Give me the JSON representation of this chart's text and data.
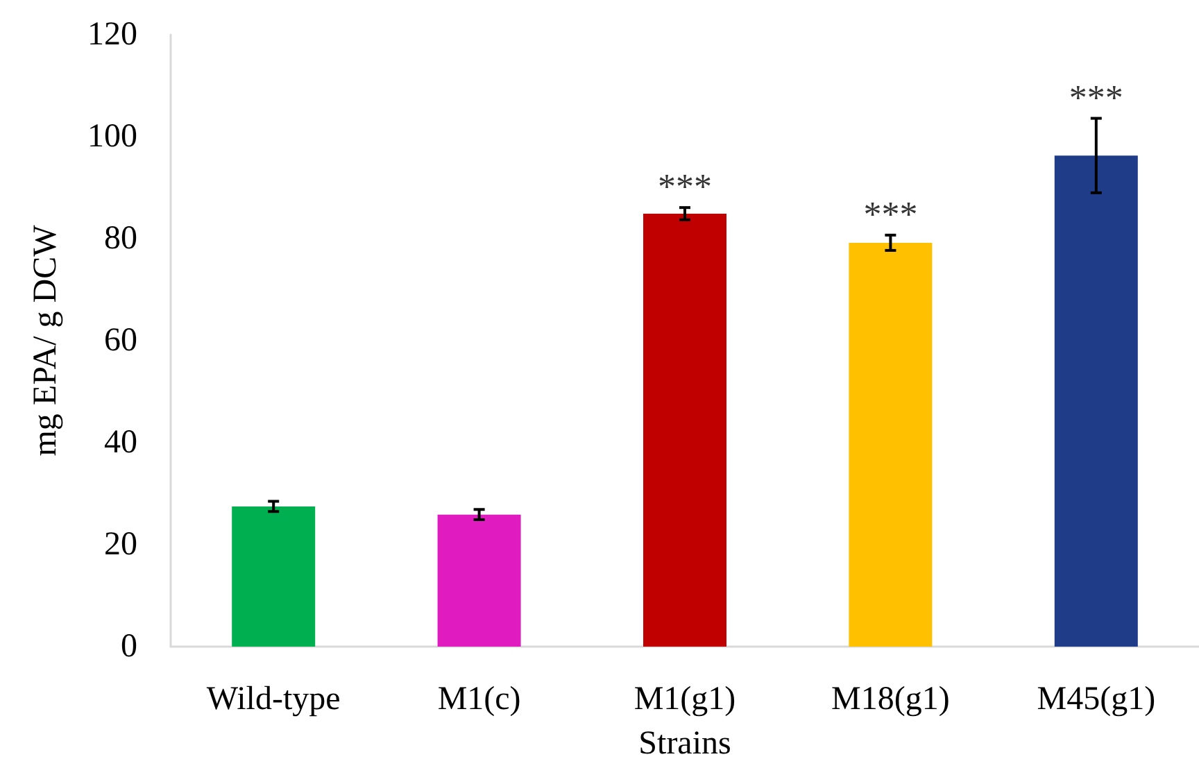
{
  "chart_data": {
    "type": "bar",
    "xlabel": "Strains",
    "ylabel": "mg EPA/ g DCW",
    "categories": [
      "Wild-type",
      "M1(c)",
      "M1(g1)",
      "M18(g1)",
      "M45(g1)"
    ],
    "values": [
      27.5,
      25.9,
      84.9,
      79.2,
      96.3
    ],
    "colors": [
      "#00b050",
      "#e01cc0",
      "#c00000",
      "#ffc000",
      "#1f3c88"
    ],
    "errors": [
      1,
      1,
      1.2,
      1.5,
      7.3
    ],
    "ylim": [
      0,
      120
    ],
    "yticks": [
      0,
      20,
      40,
      60,
      80,
      100,
      120
    ],
    "grid": false,
    "annotations": [
      {
        "text": "***",
        "x": "M1(g1)",
        "y": 86.1
      },
      {
        "text": "***",
        "x": "M18(g1)",
        "y": 80.7
      },
      {
        "text": "***",
        "x": "M45(g1)",
        "y": 103.6
      }
    ]
  }
}
